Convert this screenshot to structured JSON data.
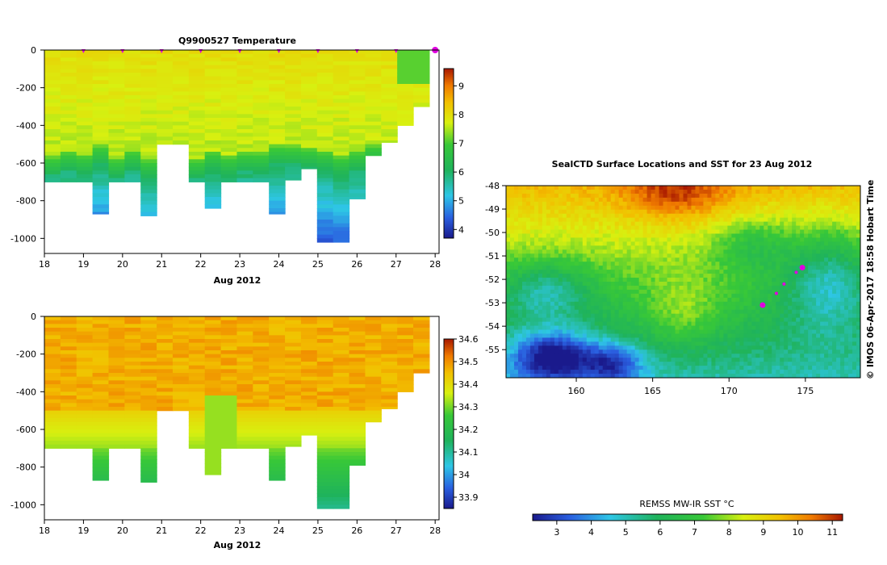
{
  "chart_data": [
    {
      "type": "heatmap",
      "title": "Q9900527  Temperature",
      "xlabel": "Aug 2012",
      "ylabel": "",
      "x_ticks": [
        "18",
        "19",
        "20",
        "21",
        "22",
        "23",
        "24",
        "25",
        "26",
        "27",
        "28"
      ],
      "y_ticks": [
        "0",
        "-200",
        "-400",
        "-600",
        "-800",
        "-1000"
      ],
      "xlim": [
        18,
        28.1
      ],
      "ylim": [
        -1080,
        0
      ],
      "colorbar_ticks": [
        "4",
        "5",
        "6",
        "7",
        "8",
        "9"
      ],
      "colorbar_range": [
        3.7,
        9.6
      ],
      "profile_markers_x": [
        19,
        20,
        21,
        22,
        23,
        24,
        25,
        26,
        27,
        28
      ]
    },
    {
      "type": "heatmap",
      "title": "",
      "xlabel": "Aug 2012",
      "ylabel": "",
      "x_ticks": [
        "18",
        "19",
        "20",
        "21",
        "22",
        "23",
        "24",
        "25",
        "26",
        "27",
        "28"
      ],
      "y_ticks": [
        "0",
        "-200",
        "-400",
        "-600",
        "-800",
        "-1000"
      ],
      "xlim": [
        18,
        28.1
      ],
      "ylim": [
        -1080,
        0
      ],
      "colorbar_ticks": [
        "33.9",
        "34",
        "34.1",
        "34.2",
        "34.3",
        "34.4",
        "34.5",
        "34.6"
      ],
      "colorbar_range": [
        33.85,
        34.6
      ]
    },
    {
      "type": "heatmap",
      "title": "SealCTD Surface Locations and SST for 23 Aug 2012",
      "xlabel": "",
      "ylabel": "",
      "x_ticks": [
        "160",
        "165",
        "170",
        "175"
      ],
      "y_ticks": [
        "-48",
        "-49",
        "-50",
        "-51",
        "-52",
        "-53",
        "-54",
        "-55"
      ],
      "xlim": [
        155.4,
        178.6
      ],
      "ylim": [
        -56.2,
        -48
      ],
      "colorbar_label": "REMSS MW-IR SST °C",
      "colorbar_ticks": [
        "3",
        "4",
        "5",
        "6",
        "7",
        "8",
        "9",
        "10",
        "11"
      ],
      "colorbar_range": [
        2.3,
        11.3
      ],
      "side_text": "© IMOS 06-Apr-2017 18:58 Hobart Time",
      "seal_locations": [
        {
          "lon": 174.8,
          "lat": -51.5
        },
        {
          "lon": 174.4,
          "lat": -51.7
        },
        {
          "lon": 173.6,
          "lat": -52.2
        },
        {
          "lon": 173.1,
          "lat": -52.6
        },
        {
          "lon": 172.2,
          "lat": -53.1
        }
      ]
    }
  ]
}
